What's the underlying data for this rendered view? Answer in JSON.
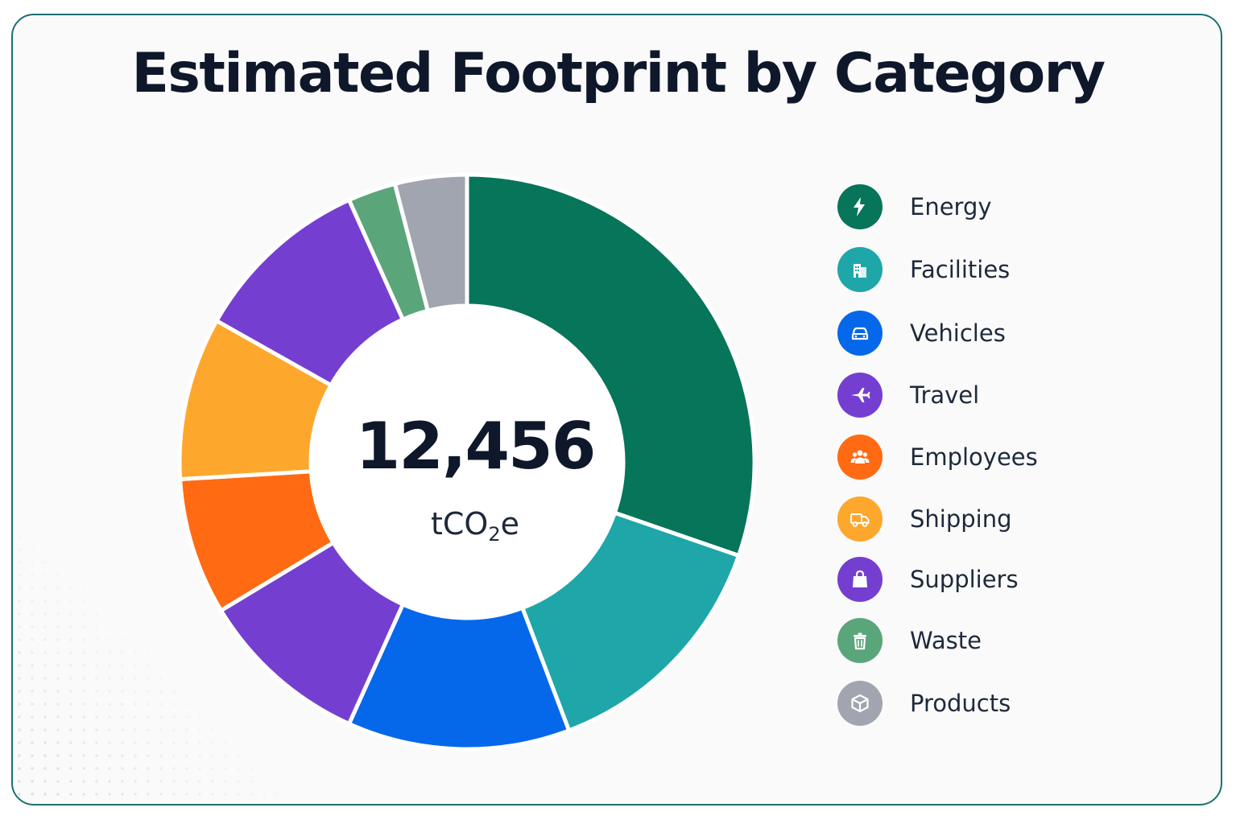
{
  "chart_data": {
    "type": "pie",
    "title": "Estimated Footprint by Category",
    "center_value": "12,456",
    "center_unit_prefix": "tCO",
    "center_unit_sub": "2",
    "center_unit_suffix": "e",
    "legend_placement": "right",
    "slices": [
      {
        "label": "Energy",
        "value": 31.5,
        "color": "#06755a",
        "icon": "lightning-icon"
      },
      {
        "label": "Facilities",
        "value": 14.5,
        "color": "#1fa6a9",
        "icon": "building-icon"
      },
      {
        "label": "Vehicles",
        "value": 13.0,
        "color": "#0568ea",
        "icon": "car-icon"
      },
      {
        "label": "Travel",
        "value": 10.0,
        "color": "#743fd1",
        "icon": "airplane-icon"
      },
      {
        "label": "Employees",
        "value": 8.0,
        "color": "#ff6a13",
        "icon": "people-icon"
      },
      {
        "label": "Shipping",
        "value": 9.5,
        "color": "#fea72d",
        "icon": "truck-icon"
      },
      {
        "label": "Suppliers",
        "value": 10.5,
        "color": "#743fd1",
        "icon": "shopping-bag-icon"
      },
      {
        "label": "Waste",
        "value": 2.8,
        "color": "#5ba57a",
        "icon": "trash-icon"
      },
      {
        "label": "Products",
        "value": 4.2,
        "color": "#a1a5b0",
        "icon": "box-icon"
      }
    ]
  }
}
